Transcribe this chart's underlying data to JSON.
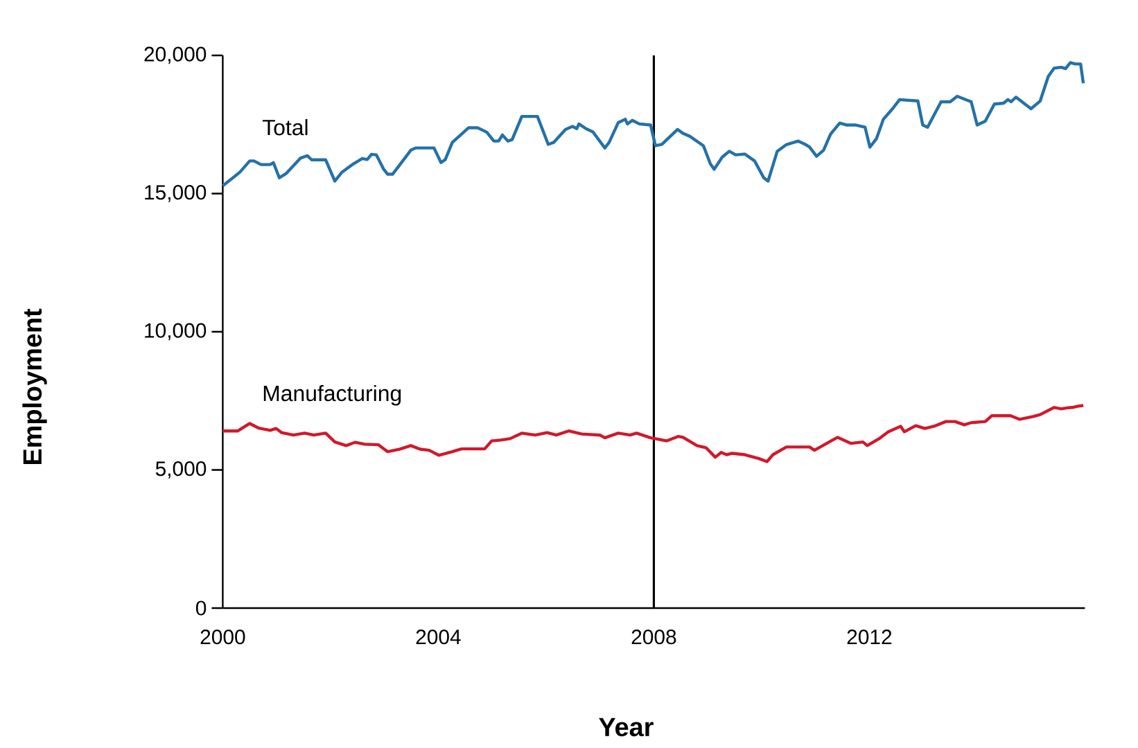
{
  "chart_data": {
    "type": "line",
    "xlabel": "Year",
    "ylabel": "Employment",
    "xlim": [
      2000,
      2016
    ],
    "xticks": [
      2000,
      2004,
      2008,
      2012
    ],
    "ylim": [
      0,
      20000
    ],
    "yticks": [
      {
        "value": 0,
        "label": "0"
      },
      {
        "value": 5000,
        "label": "5,000"
      },
      {
        "value": 10000,
        "label": "10,000"
      },
      {
        "value": 15000,
        "label": "15,000"
      },
      {
        "value": 20000,
        "label": "20,000"
      }
    ],
    "legend": false,
    "grid": false,
    "marker": "none",
    "line_style": "solid",
    "ref_lines": [
      {
        "axis": "x",
        "value": 2008,
        "color": "#000000"
      }
    ],
    "series": [
      {
        "name": "Total",
        "color": "#2471a8",
        "x": [
          2000.0,
          2000.24,
          2000.32,
          2000.5,
          2000.58,
          2000.71,
          2000.88,
          2000.94,
          2001.05,
          2001.18,
          2001.44,
          2001.57,
          2001.65,
          2001.91,
          2002.08,
          2002.21,
          2002.42,
          2002.59,
          2002.68,
          2002.76,
          2002.85,
          2002.98,
          2003.06,
          2003.15,
          2003.23,
          2003.49,
          2003.58,
          2003.92,
          2004.05,
          2004.13,
          2004.26,
          2004.56,
          2004.73,
          2004.9,
          2005.03,
          2005.12,
          2005.19,
          2005.29,
          2005.37,
          2005.55,
          2005.84,
          2006.04,
          2006.14,
          2006.36,
          2006.49,
          2006.57,
          2006.61,
          2006.74,
          2006.87,
          2007.09,
          2007.17,
          2007.34,
          2007.47,
          2007.51,
          2007.6,
          2007.73,
          2007.94,
          2008.03,
          2008.15,
          2008.44,
          2008.54,
          2008.67,
          2008.92,
          2009.05,
          2009.12,
          2009.27,
          2009.4,
          2009.52,
          2009.69,
          2009.87,
          2010.04,
          2010.12,
          2010.29,
          2010.46,
          2010.68,
          2010.81,
          2010.89,
          2011.02,
          2011.15,
          2011.28,
          2011.45,
          2011.58,
          2011.75,
          2011.92,
          2012.01,
          2012.13,
          2012.26,
          2012.43,
          2012.56,
          2012.9,
          2012.99,
          2013.08,
          2013.33,
          2013.5,
          2013.63,
          2013.89,
          2014.0,
          2014.15,
          2014.32,
          2014.49,
          2014.57,
          2014.63,
          2014.72,
          2015.0,
          2015.17,
          2015.32,
          2015.43,
          2015.56,
          2015.64,
          2015.73,
          2015.82,
          2015.92,
          2015.97
        ],
        "values": [
          15280,
          15650,
          15780,
          16180,
          16180,
          16050,
          16050,
          16120,
          15570,
          15730,
          16280,
          16370,
          16220,
          16220,
          15450,
          15770,
          16070,
          16270,
          16230,
          16420,
          16400,
          15900,
          15700,
          15700,
          15900,
          16570,
          16650,
          16650,
          16120,
          16230,
          16850,
          17380,
          17380,
          17220,
          16900,
          16900,
          17120,
          16900,
          16950,
          17790,
          17790,
          16780,
          16850,
          17320,
          17430,
          17350,
          17520,
          17350,
          17230,
          16650,
          16850,
          17570,
          17690,
          17520,
          17650,
          17520,
          17480,
          16730,
          16780,
          17320,
          17180,
          17070,
          16730,
          16070,
          15880,
          16320,
          16530,
          16400,
          16430,
          16180,
          15570,
          15450,
          16530,
          16770,
          16900,
          16780,
          16680,
          16350,
          16570,
          17150,
          17550,
          17480,
          17480,
          17400,
          16680,
          16980,
          17690,
          18070,
          18400,
          18350,
          17480,
          17400,
          18320,
          18320,
          18520,
          18320,
          17480,
          17620,
          18240,
          18270,
          18400,
          18320,
          18490,
          18070,
          18350,
          19240,
          19540,
          19570,
          19520,
          19740,
          19690,
          19690,
          18990
        ]
      },
      {
        "name": "Manufacturing",
        "color": "#d0192b",
        "x": [
          2000.0,
          2000.28,
          2000.5,
          2000.67,
          2000.88,
          2000.99,
          2001.09,
          2001.31,
          2001.52,
          2001.69,
          2001.91,
          2002.08,
          2002.29,
          2002.46,
          2002.63,
          2002.89,
          2003.06,
          2003.28,
          2003.49,
          2003.66,
          2003.83,
          2004.01,
          2004.26,
          2004.43,
          2004.86,
          2004.99,
          2005.16,
          2005.33,
          2005.55,
          2005.8,
          2006.02,
          2006.19,
          2006.42,
          2006.66,
          2007.0,
          2007.09,
          2007.34,
          2007.56,
          2007.68,
          2007.94,
          2008.03,
          2008.24,
          2008.45,
          2008.54,
          2008.8,
          2008.97,
          2009.14,
          2009.25,
          2009.35,
          2009.44,
          2009.69,
          2009.95,
          2010.1,
          2010.21,
          2010.46,
          2010.89,
          2010.98,
          2011.41,
          2011.66,
          2011.88,
          2011.96,
          2012.18,
          2012.35,
          2012.58,
          2012.65,
          2012.86,
          2013.03,
          2013.2,
          2013.42,
          2013.59,
          2013.76,
          2013.89,
          2014.15,
          2014.27,
          2014.62,
          2014.79,
          2015.04,
          2015.17,
          2015.43,
          2015.56,
          2015.69,
          2015.77,
          2015.86,
          2015.97
        ],
        "values": [
          6410,
          6410,
          6680,
          6510,
          6430,
          6500,
          6350,
          6260,
          6330,
          6260,
          6330,
          6010,
          5880,
          6000,
          5930,
          5910,
          5660,
          5750,
          5880,
          5750,
          5710,
          5530,
          5660,
          5760,
          5760,
          6050,
          6080,
          6130,
          6330,
          6260,
          6350,
          6260,
          6410,
          6300,
          6260,
          6160,
          6330,
          6260,
          6330,
          6160,
          6130,
          6050,
          6210,
          6180,
          5880,
          5800,
          5460,
          5630,
          5550,
          5600,
          5550,
          5410,
          5300,
          5550,
          5830,
          5830,
          5710,
          6180,
          5960,
          6010,
          5880,
          6130,
          6380,
          6580,
          6380,
          6600,
          6500,
          6580,
          6750,
          6750,
          6630,
          6710,
          6750,
          6960,
          6960,
          6830,
          6930,
          7000,
          7260,
          7210,
          7250,
          7260,
          7300,
          7330
        ]
      }
    ]
  }
}
